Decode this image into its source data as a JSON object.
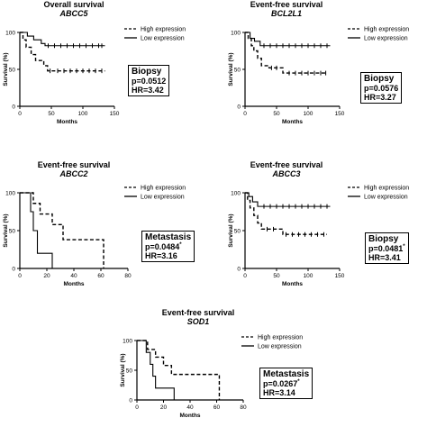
{
  "chart_data": [
    {
      "type": "line",
      "title": "Overall survival",
      "subtitle": "ABCC5",
      "xlabel": "Months",
      "ylabel": "Survival (%)",
      "xlim": [
        0,
        150
      ],
      "ylim": [
        0,
        100
      ],
      "xticks": [
        "0",
        "50",
        "100",
        "150"
      ],
      "yticks": [
        "0",
        "50",
        "100"
      ],
      "legend_position": "top-right",
      "annotation": {
        "label": "Biopsy",
        "p": "p=0.0512",
        "p_sup": "",
        "hr": "HR=3.42"
      },
      "series": [
        {
          "name": "High expression",
          "style": "dashed",
          "steps": [
            [
              0,
              100
            ],
            [
              5,
              90
            ],
            [
              10,
              80
            ],
            [
              18,
              70
            ],
            [
              25,
              62
            ],
            [
              38,
              55
            ],
            [
              44,
              48
            ],
            [
              135,
              48
            ]
          ],
          "censor_x": [
            48,
            60,
            70,
            80,
            90,
            100,
            110,
            120,
            130
          ]
        },
        {
          "name": "Low expression",
          "style": "solid",
          "steps": [
            [
              0,
              100
            ],
            [
              12,
              95
            ],
            [
              22,
              90
            ],
            [
              34,
              85
            ],
            [
              40,
              82
            ],
            [
              135,
              82
            ]
          ],
          "censor_x": [
            45,
            55,
            65,
            75,
            85,
            95,
            105,
            115,
            125,
            130
          ]
        }
      ]
    },
    {
      "type": "line",
      "title": "Event-free survival",
      "subtitle": "BCL2L1",
      "xlabel": "Months",
      "ylabel": "Survival (%)",
      "xlim": [
        0,
        150
      ],
      "ylim": [
        0,
        100
      ],
      "xticks": [
        "0",
        "50",
        "100",
        "150"
      ],
      "yticks": [
        "0",
        "50",
        "100"
      ],
      "legend_position": "top-right",
      "annotation": {
        "label": "Biopsy",
        "p": "p=0.0576",
        "p_sup": "",
        "hr": "HR=3.27"
      },
      "series": [
        {
          "name": "High expression",
          "style": "dashed",
          "steps": [
            [
              0,
              100
            ],
            [
              5,
              92
            ],
            [
              10,
              82
            ],
            [
              14,
              75
            ],
            [
              20,
              65
            ],
            [
              26,
              55
            ],
            [
              38,
              52
            ],
            [
              60,
              45
            ],
            [
              130,
              45
            ]
          ],
          "censor_x": [
            42,
            50,
            70,
            80,
            90,
            100,
            110,
            120,
            128
          ]
        },
        {
          "name": "Low expression",
          "style": "solid",
          "steps": [
            [
              0,
              100
            ],
            [
              8,
              92
            ],
            [
              15,
              88
            ],
            [
              24,
              82
            ],
            [
              135,
              82
            ]
          ],
          "censor_x": [
            30,
            40,
            50,
            60,
            70,
            80,
            90,
            100,
            110,
            120,
            130
          ]
        }
      ]
    },
    {
      "type": "line",
      "title": "Event-free survival",
      "subtitle": "ABCC2",
      "xlabel": "Months",
      "ylabel": "Survival (%)",
      "xlim": [
        0,
        80
      ],
      "ylim": [
        0,
        100
      ],
      "xticks": [
        "0",
        "20",
        "40",
        "60",
        "80"
      ],
      "yticks": [
        "0",
        "50",
        "100"
      ],
      "legend_position": "top-right",
      "annotation": {
        "label": "Metastasis",
        "p": "p=0.0484",
        "p_sup": "*",
        "hr": "HR=3.16"
      },
      "series": [
        {
          "name": "High expression",
          "style": "dashed",
          "steps": [
            [
              0,
              100
            ],
            [
              10,
              86
            ],
            [
              15,
              72
            ],
            [
              24,
              58
            ],
            [
              32,
              38
            ],
            [
              62,
              38
            ],
            [
              62,
              0
            ]
          ],
          "censor_x": []
        },
        {
          "name": "Low expression",
          "style": "solid",
          "steps": [
            [
              0,
              100
            ],
            [
              8,
              75
            ],
            [
              10,
              50
            ],
            [
              13,
              20
            ],
            [
              24,
              20
            ],
            [
              24,
              0
            ]
          ],
          "censor_x": []
        }
      ]
    },
    {
      "type": "line",
      "title": "Event-free survival",
      "subtitle": "ABCC3",
      "xlabel": "Months",
      "ylabel": "Survival (%)",
      "xlim": [
        0,
        150
      ],
      "ylim": [
        0,
        100
      ],
      "xticks": [
        "0",
        "50",
        "100",
        "150"
      ],
      "yticks": [
        "0",
        "50",
        "100"
      ],
      "legend_position": "top-right",
      "annotation": {
        "label": "Biopsy",
        "p": "p=0.0481",
        "p_sup": "*",
        "hr": "HR=3.41"
      },
      "series": [
        {
          "name": "High expression",
          "style": "dashed",
          "steps": [
            [
              0,
              100
            ],
            [
              4,
              90
            ],
            [
              8,
              80
            ],
            [
              14,
              70
            ],
            [
              20,
              60
            ],
            [
              26,
              52
            ],
            [
              60,
              45
            ],
            [
              130,
              45
            ]
          ],
          "censor_x": [
            35,
            45,
            65,
            75,
            85,
            95,
            105,
            115,
            125
          ]
        },
        {
          "name": "Low expression",
          "style": "solid",
          "steps": [
            [
              0,
              100
            ],
            [
              6,
              95
            ],
            [
              12,
              88
            ],
            [
              20,
              82
            ],
            [
              135,
              82
            ]
          ],
          "censor_x": [
            30,
            40,
            50,
            60,
            70,
            80,
            90,
            100,
            110,
            120,
            130
          ]
        }
      ]
    },
    {
      "type": "line",
      "title": "Event-free survival",
      "subtitle": "SOD1",
      "xlabel": "Months",
      "ylabel": "Survival (%)",
      "xlim": [
        0,
        80
      ],
      "ylim": [
        0,
        100
      ],
      "xticks": [
        "0",
        "20",
        "40",
        "60",
        "80"
      ],
      "yticks": [
        "0",
        "50",
        "100"
      ],
      "legend_position": "top-right",
      "annotation": {
        "label": "Metastasis",
        "p": "p=0.0267",
        "p_sup": "*",
        "hr": "HR=3.14"
      },
      "series": [
        {
          "name": "High expression",
          "style": "dashed",
          "steps": [
            [
              0,
              100
            ],
            [
              8,
              85
            ],
            [
              14,
              72
            ],
            [
              20,
              58
            ],
            [
              26,
              43
            ],
            [
              62,
              43
            ],
            [
              62,
              0
            ]
          ],
          "censor_x": []
        },
        {
          "name": "Low expression",
          "style": "solid",
          "steps": [
            [
              0,
              100
            ],
            [
              7,
              80
            ],
            [
              10,
              60
            ],
            [
              12,
              40
            ],
            [
              14,
              20
            ],
            [
              28,
              20
            ],
            [
              28,
              0
            ]
          ],
          "censor_x": []
        }
      ]
    }
  ]
}
